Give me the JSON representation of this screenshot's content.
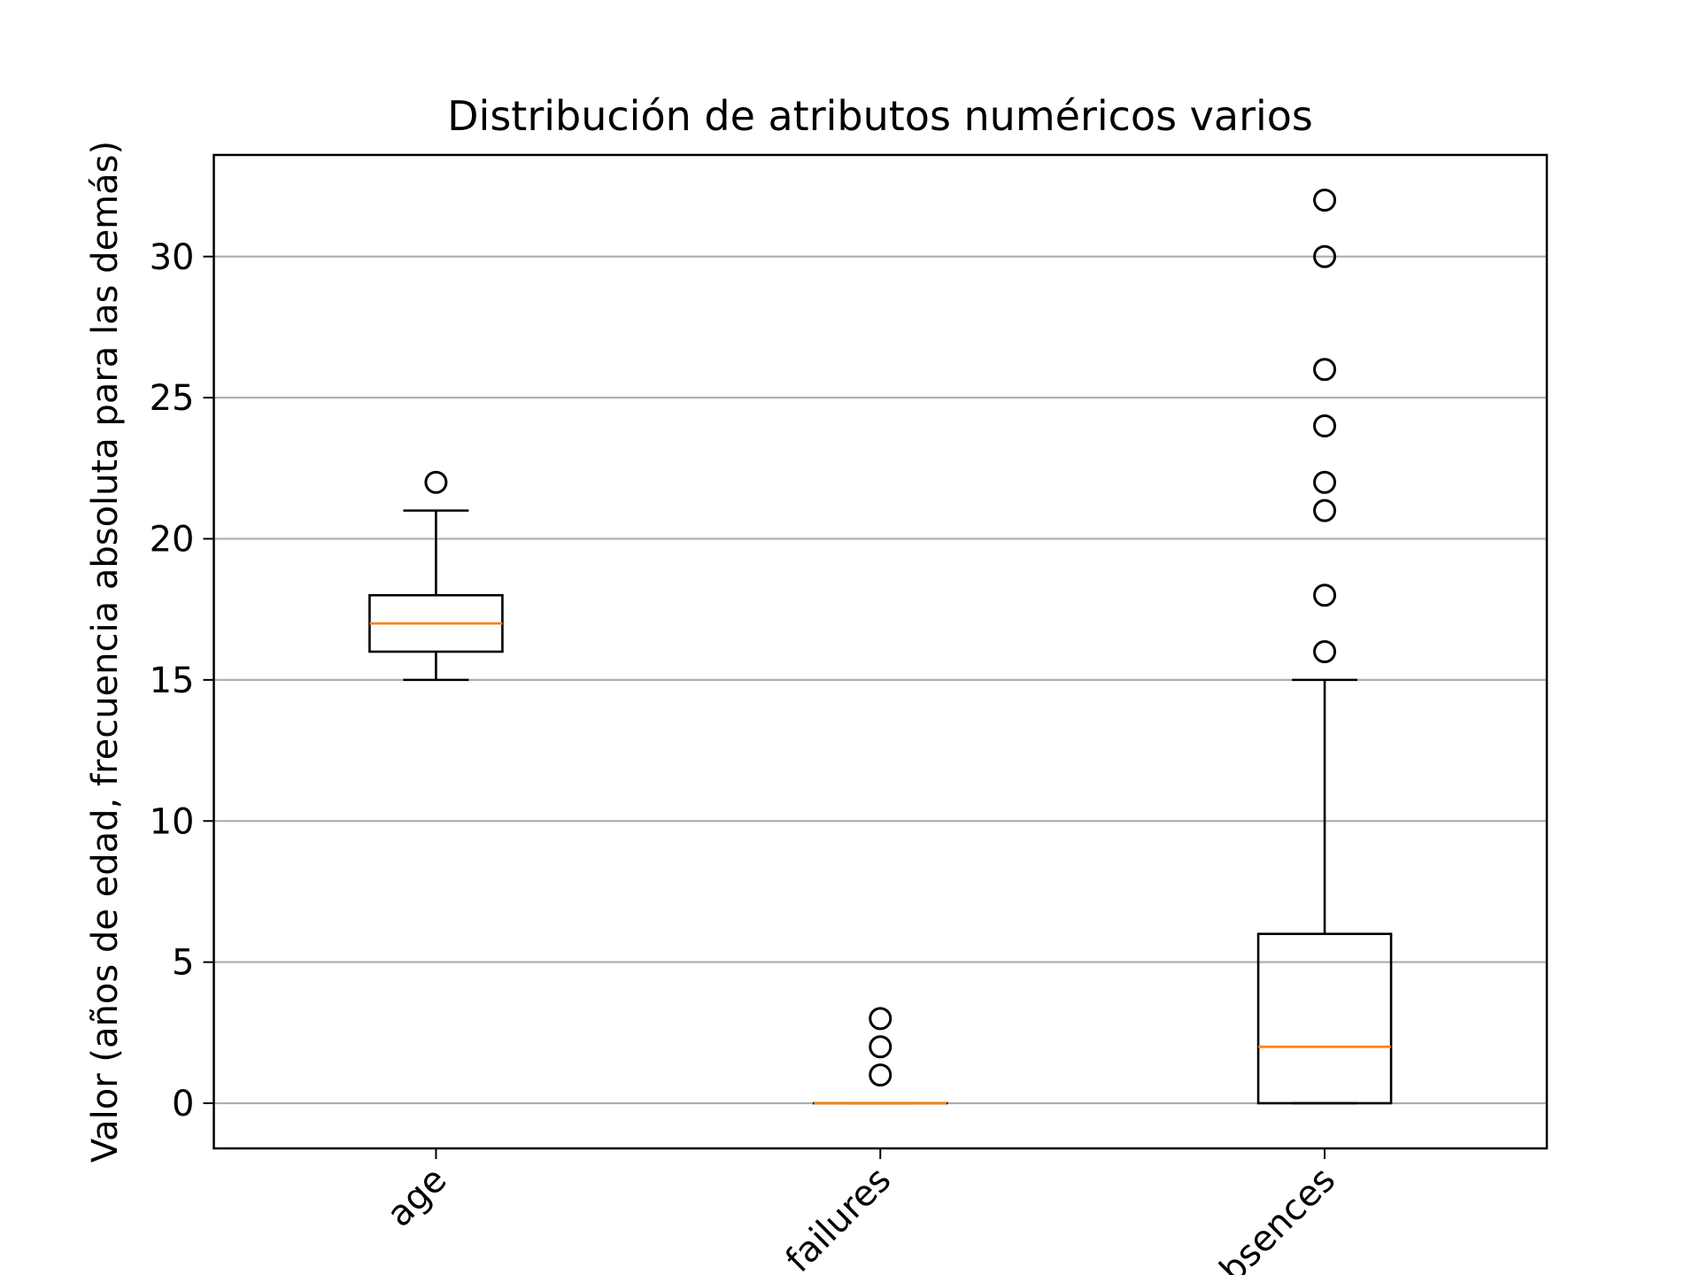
{
  "chart_data": {
    "type": "boxplot",
    "title": "Distribución de atributos numéricos varios",
    "xlabel": "",
    "ylabel": "Valor (años de edad, frecuencia absoluta para las demás)",
    "ylim": [
      -1.6,
      33.6
    ],
    "yticks": [
      0,
      5,
      10,
      15,
      20,
      25,
      30
    ],
    "categories": [
      "age",
      "failures",
      "absences"
    ],
    "grid": "horizontal",
    "boxes": [
      {
        "label": "age",
        "whisker_low": 15,
        "q1": 16,
        "median": 17,
        "q3": 18,
        "whisker_high": 21,
        "outliers": [
          22
        ]
      },
      {
        "label": "failures",
        "whisker_low": 0,
        "q1": 0,
        "median": 0,
        "q3": 0,
        "whisker_high": 0,
        "outliers": [
          1,
          2,
          3
        ]
      },
      {
        "label": "absences",
        "whisker_low": 0,
        "q1": 0,
        "median": 2,
        "q3": 6,
        "whisker_high": 15,
        "outliers": [
          16,
          18,
          21,
          22,
          24,
          26,
          30,
          32
        ]
      }
    ],
    "colors": {
      "box": "#000000",
      "median": "#ff7f0e",
      "grid": "#b0b0b0"
    }
  }
}
